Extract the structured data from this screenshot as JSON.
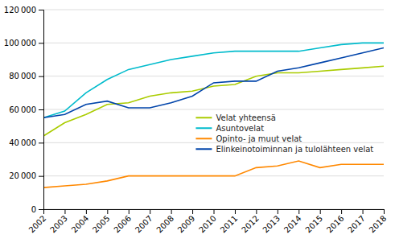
{
  "chart_data": {
    "type": "line",
    "x": [
      2002,
      2003,
      2004,
      2005,
      2006,
      2007,
      2008,
      2009,
      2010,
      2011,
      2012,
      2013,
      2014,
      2015,
      2016,
      2017,
      2018
    ],
    "series": [
      {
        "name": "Velat yhteensä",
        "color": "#aacc00",
        "values": [
          44000,
          52000,
          57000,
          63000,
          64000,
          68000,
          70000,
          71000,
          74000,
          75000,
          80000,
          82000,
          82000,
          83000,
          84000,
          85000,
          86000
        ]
      },
      {
        "name": "Asuntovelat",
        "color": "#00bbcc",
        "values": [
          55000,
          59000,
          70000,
          78000,
          84000,
          87000,
          90000,
          92000,
          94000,
          95000,
          95000,
          95000,
          95000,
          97000,
          99000,
          100000,
          100000
        ]
      },
      {
        "name": "Opinto- ja muut velat",
        "color": "#ff8800",
        "values": [
          13000,
          14000,
          15000,
          17000,
          20000,
          20000,
          20000,
          20000,
          20000,
          20000,
          25000,
          26000,
          29000,
          25000,
          27000,
          27000,
          27000
        ]
      },
      {
        "name": "Elinkeinotoiminnan ja tulolähteen velat",
        "color": "#0044aa",
        "values": [
          55000,
          57000,
          63000,
          65000,
          61000,
          61000,
          64000,
          68000,
          76000,
          77000,
          77000,
          83000,
          85000,
          88000,
          91000,
          94000,
          97000
        ]
      }
    ],
    "xlim": [
      2002,
      2018
    ],
    "xticks": [
      2002,
      2003,
      2004,
      2005,
      2006,
      2007,
      2008,
      2009,
      2010,
      2011,
      2012,
      2013,
      2014,
      2015,
      2016,
      2017,
      2018
    ],
    "ylim": [
      0,
      120000
    ],
    "yticks": [
      0,
      {
        "value": 20000,
        "label": "20 000"
      },
      {
        "value": 40000,
        "label": "40 000"
      },
      {
        "value": 60000,
        "label": "60 000"
      },
      {
        "value": 80000,
        "label": "80 000"
      },
      {
        "value": 100000,
        "label": "100 000"
      },
      {
        "value": 120000,
        "label": "120 000"
      }
    ],
    "grid": true,
    "legend": "right"
  }
}
